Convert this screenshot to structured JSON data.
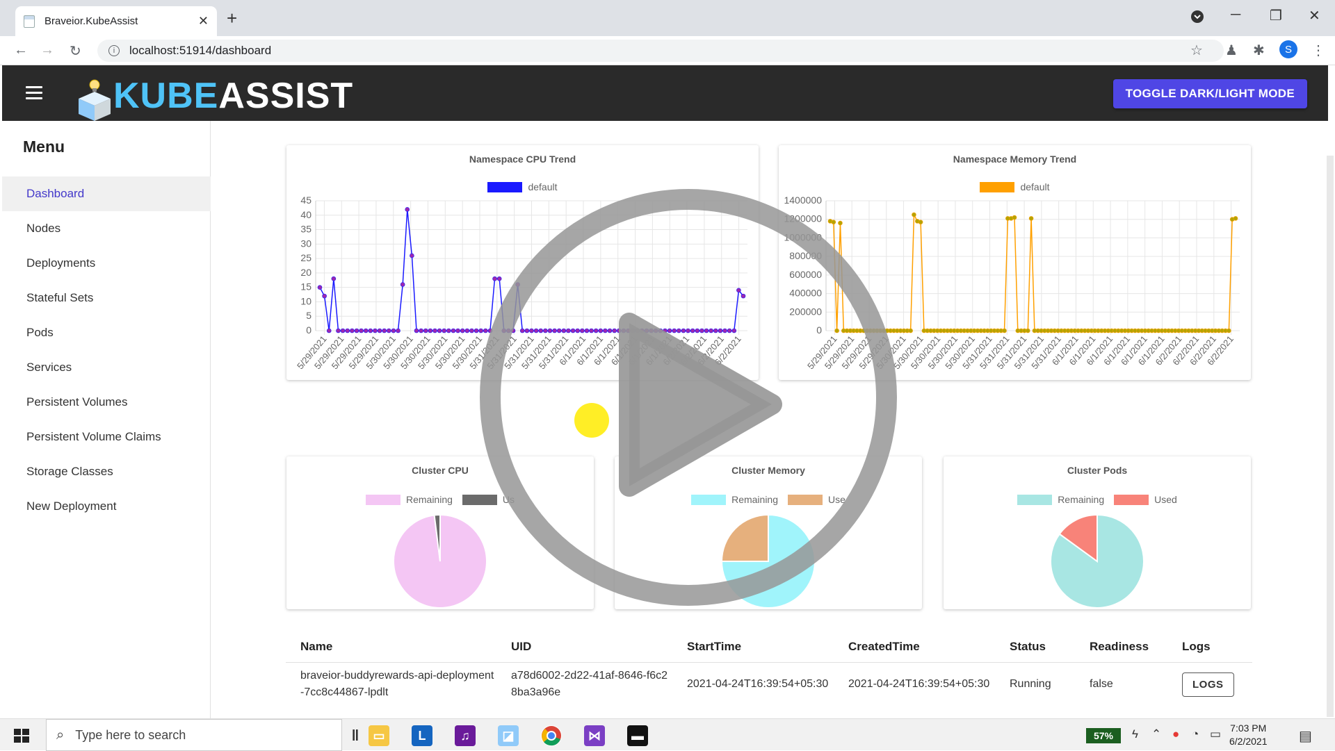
{
  "browser": {
    "tab_title": "Braveior.KubeAssist",
    "url": "localhost:51914/dashboard",
    "profile_initial": "S"
  },
  "app": {
    "logo_kube": "KUBE",
    "logo_assist": "ASSIST",
    "toggle_label": "TOGGLE DARK/LIGHT MODE"
  },
  "sidebar": {
    "title": "Menu",
    "items": [
      {
        "label": "Dashboard",
        "active": true
      },
      {
        "label": "Nodes"
      },
      {
        "label": "Deployments"
      },
      {
        "label": "Stateful Sets"
      },
      {
        "label": "Pods"
      },
      {
        "label": "Services"
      },
      {
        "label": "Persistent Volumes"
      },
      {
        "label": "Persistent Volume Claims"
      },
      {
        "label": "Storage Classes"
      },
      {
        "label": "New Deployment"
      }
    ]
  },
  "chart_data": [
    {
      "type": "line",
      "title": "Namespace CPU Trend",
      "ylim": [
        0,
        45
      ],
      "yticks": [
        "45",
        "40",
        "35",
        "30",
        "25",
        "20",
        "15",
        "10",
        "5",
        "0"
      ],
      "xticks": [
        "5/29/2021",
        "5/29/2021",
        "5/29/2021",
        "5/29/2021",
        "5/30/2021",
        "5/30/2021",
        "5/30/2021",
        "5/30/2021",
        "5/30/2021",
        "5/30/2021",
        "5/31/2021",
        "5/31/2021",
        "5/31/2021",
        "5/31/2021",
        "5/31/2021",
        "6/1/2021",
        "6/1/2021",
        "6/1/2021",
        "6/1/2021",
        "6/1/2021",
        "6/1/2021",
        "6/2/2021",
        "6/2/2021",
        "6/2/2021",
        "6/2/2021"
      ],
      "series": [
        {
          "name": "default",
          "color": "#1a1aff",
          "point_color": "#9c27b0",
          "values": [
            15,
            12,
            0,
            18,
            0,
            0,
            0,
            0,
            0,
            0,
            0,
            0,
            0,
            0,
            0,
            0,
            0,
            0,
            16,
            42,
            26,
            0,
            0,
            0,
            0,
            0,
            0,
            0,
            0,
            0,
            0,
            0,
            0,
            0,
            0,
            0,
            0,
            0,
            18,
            18,
            0,
            0,
            0,
            16,
            0,
            0,
            0,
            0,
            0,
            0,
            0,
            0,
            0,
            0,
            0,
            0,
            0,
            0,
            0,
            0,
            0,
            0,
            0,
            0,
            0,
            0,
            0,
            0,
            0,
            0,
            0,
            0,
            0,
            0,
            0,
            0,
            0,
            0,
            0,
            0,
            0,
            0,
            0,
            0,
            0,
            0,
            0,
            0,
            0,
            0,
            0,
            14,
            12
          ]
        }
      ]
    },
    {
      "type": "line",
      "title": "Namespace Memory Trend",
      "ylim": [
        0,
        1400000
      ],
      "yticks": [
        "1400000",
        "1200000",
        "1000000",
        "800000",
        "600000",
        "400000",
        "200000",
        "0"
      ],
      "xticks": [
        "5/29/2021",
        "5/29/2021",
        "5/29/2021",
        "5/29/2021",
        "5/30/2021",
        "5/30/2021",
        "5/30/2021",
        "5/30/2021",
        "5/30/2021",
        "5/31/2021",
        "5/31/2021",
        "5/31/2021",
        "5/31/2021",
        "5/31/2021",
        "6/1/2021",
        "6/1/2021",
        "6/1/2021",
        "6/1/2021",
        "6/1/2021",
        "6/1/2021",
        "6/2/2021",
        "6/2/2021",
        "6/2/2021",
        "6/2/2021"
      ],
      "series": [
        {
          "name": "default",
          "color": "#ffa000",
          "point_color": "#b5a400",
          "values": [
            1180000,
            1170000,
            0,
            1160000,
            0,
            0,
            0,
            0,
            0,
            0,
            0,
            0,
            0,
            0,
            0,
            0,
            0,
            0,
            0,
            0,
            0,
            0,
            0,
            0,
            0,
            1250000,
            1180000,
            1170000,
            0,
            0,
            0,
            0,
            0,
            0,
            0,
            0,
            0,
            0,
            0,
            0,
            0,
            0,
            0,
            0,
            0,
            0,
            0,
            0,
            0,
            0,
            0,
            0,
            0,
            1210000,
            1210000,
            1220000,
            0,
            0,
            0,
            0,
            1210000,
            0,
            0,
            0,
            0,
            0,
            0,
            0,
            0,
            0,
            0,
            0,
            0,
            0,
            0,
            0,
            0,
            0,
            0,
            0,
            0,
            0,
            0,
            0,
            0,
            0,
            0,
            0,
            0,
            0,
            0,
            0,
            0,
            0,
            0,
            0,
            0,
            0,
            0,
            0,
            0,
            0,
            0,
            0,
            0,
            0,
            0,
            0,
            0,
            0,
            0,
            0,
            0,
            0,
            0,
            0,
            0,
            0,
            0,
            0,
            1200000,
            1210000
          ]
        }
      ]
    },
    {
      "type": "pie",
      "title": "Cluster CPU",
      "categories": [
        "Remaining",
        "Used"
      ],
      "values": [
        98,
        2
      ],
      "colors": [
        "#f4c6f4",
        "#6b6b6b"
      ]
    },
    {
      "type": "pie",
      "title": "Cluster Memory",
      "categories": [
        "Remaining",
        "Used"
      ],
      "values": [
        75,
        25
      ],
      "colors": [
        "#a0f4fb",
        "#e6b07d"
      ]
    },
    {
      "type": "pie",
      "title": "Cluster Pods",
      "categories": [
        "Remaining",
        "Used"
      ],
      "values": [
        85,
        15
      ],
      "colors": [
        "#a8e6e3",
        "#f88379"
      ]
    }
  ],
  "legend_labels": {
    "cpu_remaining": "Remaining",
    "cpu_used": "Us",
    "mem_remaining": "Remaining",
    "mem_used": "Use",
    "pods_remaining": "Remaining",
    "pods_used": "Used",
    "trend_default": "default"
  },
  "table": {
    "headers": [
      "Name",
      "UID",
      "StartTime",
      "CreatedTime",
      "Status",
      "Readiness",
      "Logs"
    ],
    "rows": [
      {
        "name": "braveior-buddyrewards-api-deployment-7cc8c44867-lpdlt",
        "uid": "a78d6002-2d22-41af-8646-f6c28ba3a96e",
        "start": "2021-04-24T16:39:54+05:30",
        "created": "2021-04-24T16:39:54+05:30",
        "status": "Running",
        "readiness": "false",
        "logs_label": "LOGS"
      }
    ]
  },
  "taskbar": {
    "search_placeholder": "Type here to search",
    "battery": "57%",
    "time": "7:03 PM",
    "date": "6/2/2021"
  }
}
